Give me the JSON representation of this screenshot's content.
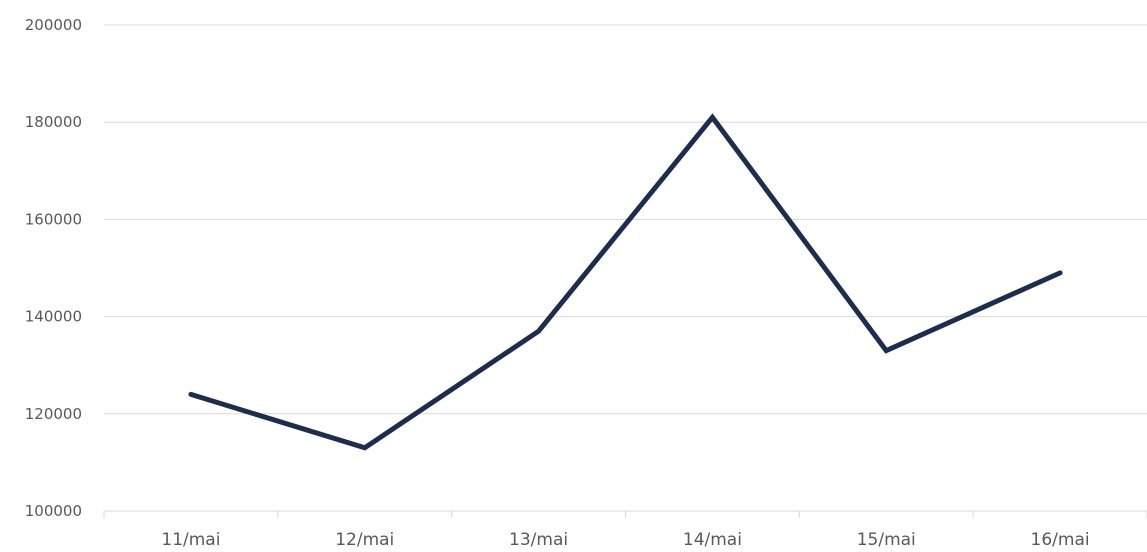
{
  "chart_data": {
    "type": "line",
    "title": "",
    "xlabel": "",
    "ylabel": "",
    "categories": [
      "11/mai",
      "12/mai",
      "13/mai",
      "14/mai",
      "15/mai",
      "16/mai"
    ],
    "series": [
      {
        "values": [
          124000,
          113000,
          137000,
          181000,
          133000,
          149000
        ]
      }
    ],
    "ylim": [
      100000,
      200000
    ],
    "yticks": [
      "100000",
      "120000",
      "140000",
      "160000",
      "180000",
      "200000"
    ],
    "grid": true,
    "legend": "none",
    "colors": {
      "line": "#1f2d4d",
      "grid": "#d9d9d9",
      "tick_text": "#595959"
    }
  }
}
